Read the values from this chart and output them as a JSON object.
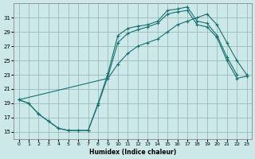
{
  "xlabel": "Humidex (Indice chaleur)",
  "bg_color": "#cce8e8",
  "grid_color": "#99bbbb",
  "line_color": "#1a7070",
  "xlim": [
    -0.5,
    23.5
  ],
  "ylim": [
    14.0,
    33.0
  ],
  "yticks": [
    15,
    17,
    19,
    21,
    23,
    25,
    27,
    29,
    31
  ],
  "xticks": [
    0,
    1,
    2,
    3,
    4,
    5,
    6,
    7,
    8,
    9,
    10,
    11,
    12,
    13,
    14,
    15,
    16,
    17,
    18,
    19,
    20,
    21,
    22,
    23
  ],
  "line1_x": [
    0,
    1,
    2,
    3,
    4,
    5,
    6,
    7,
    8,
    9,
    10,
    11,
    12,
    13,
    14,
    15,
    16,
    17,
    18,
    19,
    20,
    21,
    22
  ],
  "line1_y": [
    19.5,
    19.0,
    17.5,
    16.5,
    15.5,
    15.2,
    15.2,
    15.2,
    19.0,
    23.2,
    28.5,
    29.5,
    29.8,
    30.0,
    30.5,
    32.0,
    32.2,
    32.5,
    30.5,
    30.2,
    28.5,
    25.5,
    23.0
  ],
  "line2_x": [
    0,
    1,
    2,
    3,
    4,
    5,
    6,
    7,
    8,
    9,
    10,
    11,
    12,
    13,
    14,
    15,
    16,
    17,
    18,
    19,
    20,
    21,
    22,
    23
  ],
  "line2_y": [
    19.5,
    19.0,
    17.5,
    16.5,
    15.5,
    15.2,
    15.2,
    15.2,
    18.8,
    22.8,
    27.5,
    28.8,
    29.3,
    29.7,
    30.2,
    31.5,
    31.8,
    32.0,
    30.0,
    29.7,
    28.2,
    25.0,
    22.5,
    22.8
  ],
  "line3_x": [
    0,
    9,
    10,
    11,
    12,
    13,
    14,
    15,
    16,
    17,
    18,
    19,
    20,
    21,
    22,
    23
  ],
  "line3_y": [
    19.5,
    22.5,
    24.5,
    26.0,
    27.0,
    27.5,
    28.0,
    29.0,
    30.0,
    30.5,
    31.0,
    31.5,
    30.0,
    27.5,
    25.0,
    23.0
  ]
}
